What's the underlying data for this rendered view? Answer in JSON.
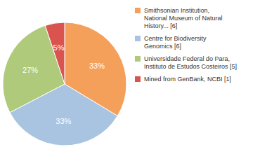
{
  "chart_data": {
    "type": "pie",
    "categories": [
      "Smithsonian Institution,\nNational Museum of Natural\nHistory... [6]",
      "Centre for Biodiversity\nGenomics [6]",
      "Universidade Federal do Para,\nInstituto de Estudos Costeiros [5]",
      "Mined from GenBank, NCBI [1]"
    ],
    "values": [
      33,
      33,
      27,
      5
    ],
    "value_labels": [
      "33%",
      "33%",
      "27%",
      "5%"
    ],
    "colors": [
      "#F5A05A",
      "#A8C4E0",
      "#AECA7A",
      "#D9534F"
    ],
    "data_labels": true,
    "legend": "upper right"
  }
}
